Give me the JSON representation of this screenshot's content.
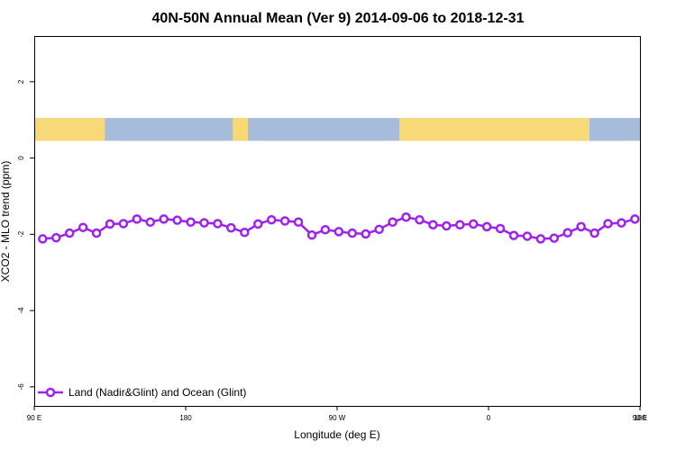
{
  "chart_data": {
    "type": "line",
    "title": "40N-50N Annual Mean (Ver 9)   2014-09-06 to 2018-12-31",
    "xlabel": "Longitude (deg E)",
    "ylabel": "XCO2 - MLO trend (ppm)",
    "xlim": [
      0,
      360
    ],
    "ylim": [
      -6.5,
      3.2
    ],
    "x_ticks": [
      {
        "value": 0,
        "label": "90 E"
      },
      {
        "value": 90,
        "label": "180"
      },
      {
        "value": 180,
        "label": "90 W"
      },
      {
        "value": 270,
        "label": "0"
      },
      {
        "value": 360,
        "label": "90 E"
      }
    ],
    "x_ticks_2": [
      {
        "value": 360,
        "label": "180"
      }
    ],
    "y_ticks": [
      {
        "value": 2,
        "label": "2"
      },
      {
        "value": 0,
        "label": "0"
      },
      {
        "value": -2,
        "label": "-2"
      },
      {
        "value": -4,
        "label": "-4"
      },
      {
        "value": -6,
        "label": "-6"
      }
    ],
    "map_strip": {
      "y_range": [
        0.45,
        1.05
      ],
      "land_color": "#f7d977",
      "ocean_color": "#a7bbdb",
      "land_segments": [
        [
          0,
          42
        ],
        [
          118,
          127
        ],
        [
          217,
          330
        ]
      ]
    },
    "series": [
      {
        "name": "Land (Nadir&Glint) and Ocean (Glint)",
        "color": "#a020f0",
        "x": [
          5,
          13,
          21,
          29,
          37,
          45,
          53,
          61,
          69,
          77,
          85,
          93,
          101,
          109,
          117,
          125,
          133,
          141,
          149,
          157,
          165,
          173,
          181,
          189,
          197,
          205,
          213,
          221,
          229,
          237,
          245,
          253,
          261,
          269,
          277,
          285,
          293,
          301,
          309,
          317,
          325,
          333,
          341,
          349,
          357
        ],
        "y": [
          -2.12,
          -2.09,
          -1.97,
          -1.82,
          -1.97,
          -1.73,
          -1.72,
          -1.6,
          -1.68,
          -1.6,
          -1.63,
          -1.68,
          -1.7,
          -1.72,
          -1.83,
          -1.95,
          -1.73,
          -1.62,
          -1.65,
          -1.68,
          -2.02,
          -1.88,
          -1.93,
          -1.97,
          -1.99,
          -1.87,
          -1.68,
          -1.55,
          -1.62,
          -1.75,
          -1.78,
          -1.75,
          -1.73,
          -1.8,
          -1.85,
          -2.03,
          -2.05,
          -2.12,
          -2.1,
          -1.96,
          -1.8,
          -1.97,
          -1.72,
          -1.7,
          -1.6
        ]
      }
    ],
    "legend": {
      "position": "bottom-left"
    }
  }
}
